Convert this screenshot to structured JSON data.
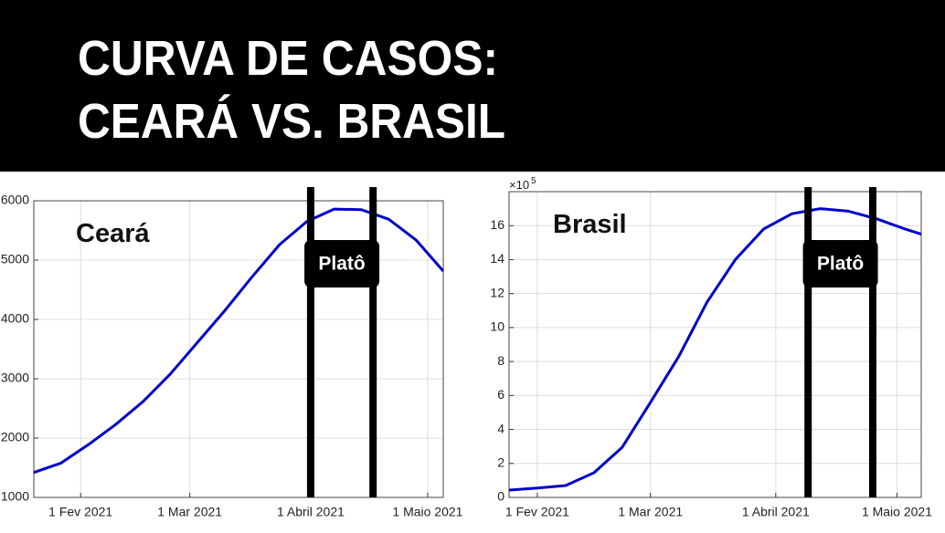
{
  "header": {
    "title_lines": [
      "CURVA DE CASOS:",
      "CEARÁ VS. BRASIL"
    ]
  },
  "chart_data": [
    {
      "type": "line",
      "panel_label": "Ceará",
      "grid": true,
      "xlim": [
        "2021-01-20",
        "2021-05-05"
      ],
      "xticks": [
        {
          "value": "2021-02-01",
          "label": "1 Fev 2021"
        },
        {
          "value": "2021-03-01",
          "label": "1 Mar 2021"
        },
        {
          "value": "2021-04-01",
          "label": "1 Abril 2021"
        },
        {
          "value": "2021-05-01",
          "label": "1 Maio 2021"
        }
      ],
      "ylim": [
        1000,
        6000
      ],
      "yticks": [
        1000,
        2000,
        3000,
        4000,
        5000,
        6000
      ],
      "x": [
        "2021-01-20",
        "2021-01-27",
        "2021-02-03",
        "2021-02-10",
        "2021-02-17",
        "2021-02-24",
        "2021-03-03",
        "2021-03-10",
        "2021-03-17",
        "2021-03-24",
        "2021-03-31",
        "2021-04-07",
        "2021-04-14",
        "2021-04-21",
        "2021-04-28",
        "2021-05-05"
      ],
      "series": [
        {
          "color": "#0000cc",
          "values": [
            1420,
            1580,
            1890,
            2230,
            2615,
            3080,
            3615,
            4150,
            4720,
            5260,
            5650,
            5860,
            5850,
            5690,
            5340,
            4815
          ]
        }
      ],
      "plateau": {
        "start": "2021-04-01",
        "end": "2021-04-17",
        "label": "Platô"
      }
    },
    {
      "type": "line",
      "panel_label": "Brasil",
      "grid": true,
      "y_multiplier": {
        "base": "×10",
        "exponent": "5"
      },
      "xlim": [
        "2021-01-25",
        "2021-05-07"
      ],
      "xticks": [
        {
          "value": "2021-02-01",
          "label": "1 Fev 2021"
        },
        {
          "value": "2021-03-01",
          "label": "1 Mar 2021"
        },
        {
          "value": "2021-04-01",
          "label": "1 Abril 2021"
        },
        {
          "value": "2021-05-01",
          "label": "1 Maio 2021"
        }
      ],
      "ylim": [
        0,
        18
      ],
      "yticks": [
        0,
        2,
        4,
        6,
        8,
        10,
        12,
        14,
        16
      ],
      "x": [
        "2021-01-25",
        "2021-02-01",
        "2021-02-08",
        "2021-02-15",
        "2021-02-22",
        "2021-03-01",
        "2021-03-08",
        "2021-03-15",
        "2021-03-22",
        "2021-03-29",
        "2021-04-05",
        "2021-04-12",
        "2021-04-19",
        "2021-04-26",
        "2021-05-03",
        "2021-05-07"
      ],
      "series": [
        {
          "color": "#0000cc",
          "values": [
            0.43,
            0.55,
            0.7,
            1.45,
            2.95,
            5.6,
            8.3,
            11.5,
            14,
            15.8,
            16.7,
            17,
            16.85,
            16.4,
            15.8,
            15.5
          ]
        }
      ],
      "plateau": {
        "start": "2021-04-09",
        "end": "2021-04-25",
        "label": "Platô"
      }
    }
  ]
}
